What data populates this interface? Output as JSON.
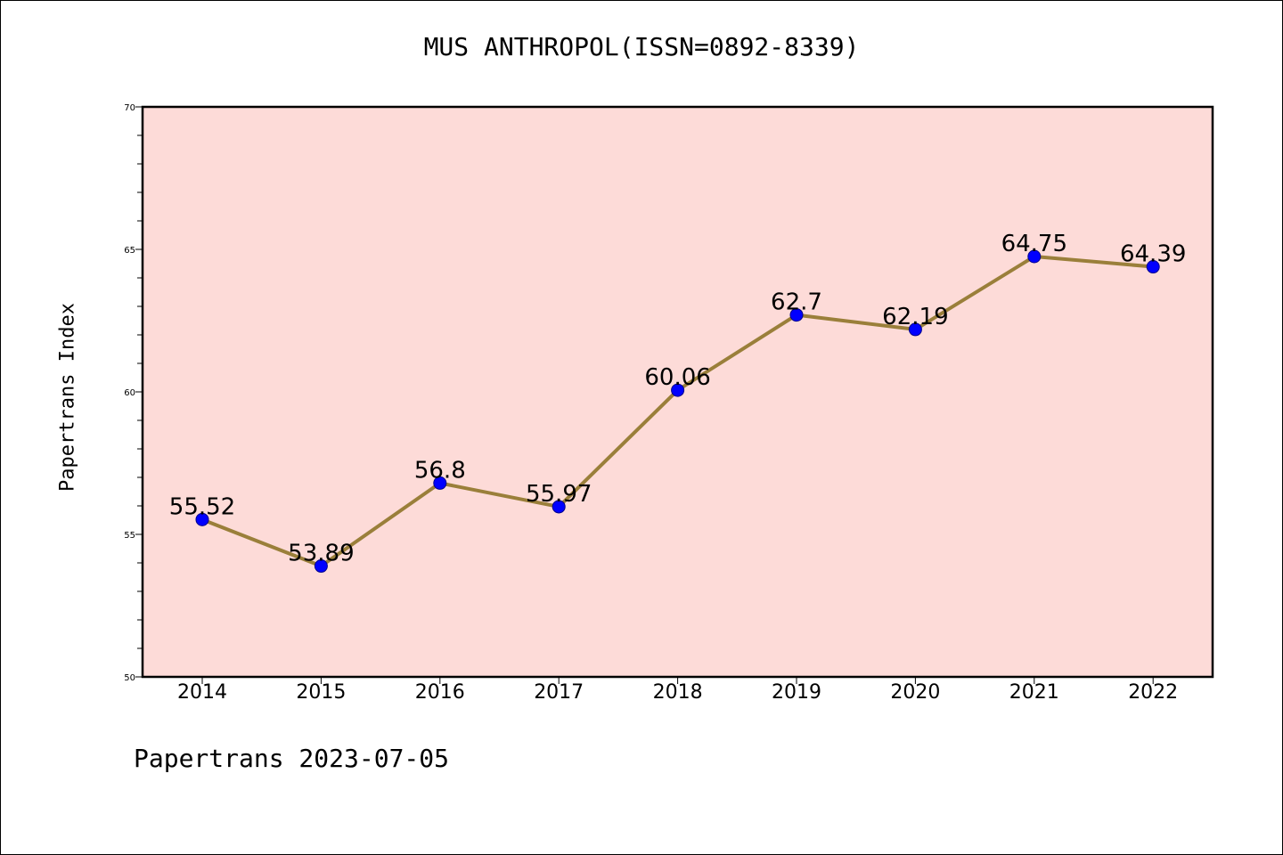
{
  "page": {
    "title": "MUS ANTHROPOL(ISSN=0892-8339)",
    "ylabel": "Papertrans Index",
    "footer": "Papertrans 2023-07-05"
  },
  "chart_data": {
    "type": "line",
    "title": "MUS ANTHROPOL(ISSN=0892-8339)",
    "xlabel": "",
    "ylabel": "Papertrans Index",
    "categories": [
      "2014",
      "2015",
      "2016",
      "2017",
      "2018",
      "2019",
      "2020",
      "2021",
      "2022"
    ],
    "series": [
      {
        "values": [
          55.52,
          53.89,
          56.8,
          55.97,
          60.06,
          62.7,
          62.19,
          64.75,
          64.39
        ],
        "labels": [
          "55.52",
          "53.89",
          "56.8",
          "55.97",
          "60.06",
          "62.7",
          "62.19",
          "64.75",
          "64.39"
        ],
        "line_color": "#9a7f3a",
        "marker_color": "#0000ff"
      }
    ],
    "ylim": [
      50,
      70
    ],
    "yticks": [
      50,
      55,
      60,
      65,
      70
    ],
    "plot_background": "#fddbd8",
    "grid": false,
    "legend": "none"
  }
}
